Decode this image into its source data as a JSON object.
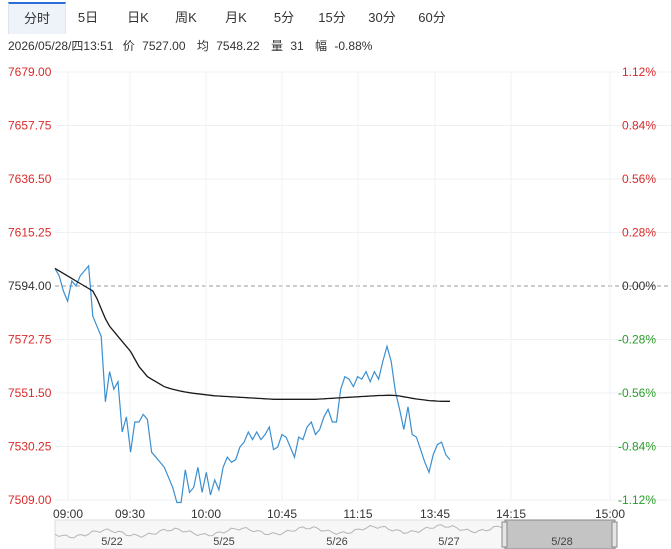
{
  "tabs": [
    {
      "label": "分时",
      "active": true
    },
    {
      "label": "5日",
      "active": false
    },
    {
      "label": "日K",
      "active": false
    },
    {
      "label": "周K",
      "active": false
    },
    {
      "label": "月K",
      "active": false
    },
    {
      "label": "5分",
      "active": false
    },
    {
      "label": "15分",
      "active": false
    },
    {
      "label": "30分",
      "active": false
    },
    {
      "label": "60分",
      "active": false
    }
  ],
  "info": {
    "datetime": "2026/05/28/四13:51",
    "price_label": "价",
    "price": "7527.00",
    "avg_label": "均",
    "avg": "7548.22",
    "vol_label": "量",
    "vol": "31",
    "chg_label": "幅",
    "chg": "-0.88%"
  },
  "chart_data": {
    "type": "line",
    "y_left_ticks": [
      "7679.00",
      "7657.75",
      "7636.50",
      "7615.25",
      "7594.00",
      "7572.75",
      "7551.50",
      "7530.25",
      "7509.00"
    ],
    "y_right_ticks": [
      "1.12%",
      "0.84%",
      "0.56%",
      "0.28%",
      "0.00%",
      "-0.28%",
      "-0.56%",
      "-0.84%",
      "-1.12%"
    ],
    "x_ticks": [
      "09:00",
      "09:30",
      "10:00",
      "10:45",
      "11:15",
      "13:45",
      "14:15",
      "15:00"
    ],
    "ylim": [
      7509.0,
      7679.0
    ],
    "prev_close": 7594.0,
    "grid": true,
    "colors": {
      "price": "#3b8fd0",
      "avg": "#1a1a1a",
      "up": "#d92b2b",
      "down": "#2a9d2a"
    },
    "series": [
      {
        "values": [
          7601,
          7598,
          7592,
          7588,
          7596,
          7594,
          7598,
          7600,
          7602,
          7582,
          7578,
          7574,
          7548,
          7560,
          7553,
          7556,
          7536,
          7542,
          7528,
          7540,
          7540,
          7543,
          7541,
          7528,
          7526,
          7524,
          7522,
          7518,
          7514,
          7508,
          7508,
          7521,
          7512,
          7514,
          7522,
          7512,
          7520,
          7511,
          7517,
          7513,
          7522,
          7526,
          7524,
          7525,
          7530,
          7532,
          7536,
          7533,
          7536,
          7533,
          7535,
          7538,
          7529,
          7530,
          7535,
          7534,
          7530,
          7526,
          7534,
          7533,
          7538,
          7540,
          7535,
          7537,
          7542,
          7545,
          7540,
          7540,
          7553,
          7558,
          7557,
          7554,
          7558,
          7557,
          7560,
          7556,
          7560,
          7557,
          7564,
          7570,
          7564,
          7552,
          7545,
          7537,
          7546,
          7535,
          7534,
          7529,
          7524,
          7520,
          7527,
          7531,
          7532,
          7527,
          7525
        ]
      },
      {
        "values": [
          7601,
          7600,
          7599,
          7598,
          7597,
          7596,
          7595,
          7594,
          7593,
          7592,
          7589,
          7585,
          7581,
          7578,
          7576,
          7574,
          7572,
          7570,
          7568,
          7565,
          7562,
          7560,
          7558,
          7557,
          7556,
          7555,
          7554,
          7553.5,
          7553,
          7552.6,
          7552.2,
          7551.9,
          7551.6,
          7551.4,
          7551.2,
          7551.0,
          7550.8,
          7550.6,
          7550.4,
          7550.3,
          7550.2,
          7550.1,
          7550.0,
          7549.9,
          7549.8,
          7549.7,
          7549.6,
          7549.5,
          7549.4,
          7549.3,
          7549.2,
          7549.1,
          7549.0,
          7549.0,
          7549.0,
          7549.0,
          7549.0,
          7549.0,
          7549.0,
          7549.0,
          7549.0,
          7549.0,
          7549.0,
          7549.1,
          7549.2,
          7549.3,
          7549.4,
          7549.5,
          7549.6,
          7549.7,
          7549.8,
          7549.9,
          7550.0,
          7550.1,
          7550.2,
          7550.3,
          7550.4,
          7550.5,
          7550.5,
          7550.6,
          7550.6,
          7550.5,
          7550.3,
          7550.0,
          7549.7,
          7549.4,
          7549.1,
          7548.9,
          7548.7,
          7548.5,
          7548.4,
          7548.3,
          7548.2,
          7548.22,
          7548.22
        ]
      }
    ]
  },
  "navigator": {
    "labels": [
      "5/22",
      "5/25",
      "5/26",
      "5/27",
      "5/28"
    ]
  }
}
